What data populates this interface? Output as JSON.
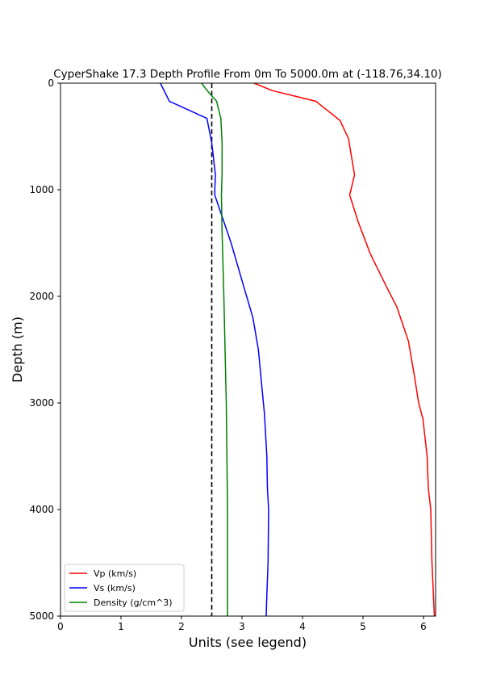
{
  "chart_data": {
    "type": "line",
    "title": "CyperShake 17.3 Depth Profile From 0m To 5000.0m at (-118.76,34.10)",
    "xlabel": "Units (see legend)",
    "ylabel": "Depth (m)",
    "xlim": [
      0,
      6.2
    ],
    "ylim": [
      5000,
      0
    ],
    "y_inverted": true,
    "xticks": [
      "0",
      "1",
      "2",
      "3",
      "4",
      "5",
      "6"
    ],
    "yticks": [
      "0",
      "1000",
      "2000",
      "3000",
      "4000",
      "5000"
    ],
    "grid": false,
    "legend_position": "lower-left",
    "reference_line": {
      "x": 2.5,
      "style": "dashed",
      "color": "#000000"
    },
    "series": [
      {
        "name": "Vp (km/s)",
        "color": "#ff0000",
        "points": [
          [
            3.2,
            0
          ],
          [
            3.5,
            70
          ],
          [
            4.22,
            170
          ],
          [
            4.62,
            350
          ],
          [
            4.76,
            520
          ],
          [
            4.86,
            860
          ],
          [
            4.78,
            1050
          ],
          [
            4.92,
            1300
          ],
          [
            5.12,
            1600
          ],
          [
            5.38,
            1900
          ],
          [
            5.56,
            2100
          ],
          [
            5.75,
            2420
          ],
          [
            5.85,
            2750
          ],
          [
            5.92,
            3000
          ],
          [
            5.99,
            3150
          ],
          [
            6.06,
            3500
          ],
          [
            6.08,
            3800
          ],
          [
            6.12,
            4000
          ],
          [
            6.14,
            4500
          ],
          [
            6.18,
            5000
          ]
        ]
      },
      {
        "name": "Vs (km/s)",
        "color": "#0000ff",
        "points": [
          [
            1.65,
            0
          ],
          [
            1.8,
            170
          ],
          [
            2.42,
            330
          ],
          [
            2.5,
            560
          ],
          [
            2.56,
            860
          ],
          [
            2.55,
            1000
          ],
          [
            2.55,
            1050
          ],
          [
            2.82,
            1500
          ],
          [
            3.05,
            1950
          ],
          [
            3.18,
            2200
          ],
          [
            3.27,
            2500
          ],
          [
            3.32,
            2800
          ],
          [
            3.37,
            3100
          ],
          [
            3.41,
            3500
          ],
          [
            3.42,
            3800
          ],
          [
            3.44,
            4000
          ],
          [
            3.43,
            4500
          ],
          [
            3.41,
            4800
          ],
          [
            3.4,
            5000
          ]
        ]
      },
      {
        "name": "Density (g/cm^3)",
        "color": "#008000",
        "points": [
          [
            2.33,
            0
          ],
          [
            2.44,
            80
          ],
          [
            2.58,
            170
          ],
          [
            2.65,
            330
          ],
          [
            2.67,
            560
          ],
          [
            2.67,
            860
          ],
          [
            2.66,
            1050
          ],
          [
            2.67,
            1400
          ],
          [
            2.7,
            2000
          ],
          [
            2.72,
            2500
          ],
          [
            2.74,
            3000
          ],
          [
            2.75,
            3500
          ],
          [
            2.76,
            4000
          ],
          [
            2.76,
            4500
          ],
          [
            2.76,
            5000
          ]
        ]
      }
    ]
  }
}
